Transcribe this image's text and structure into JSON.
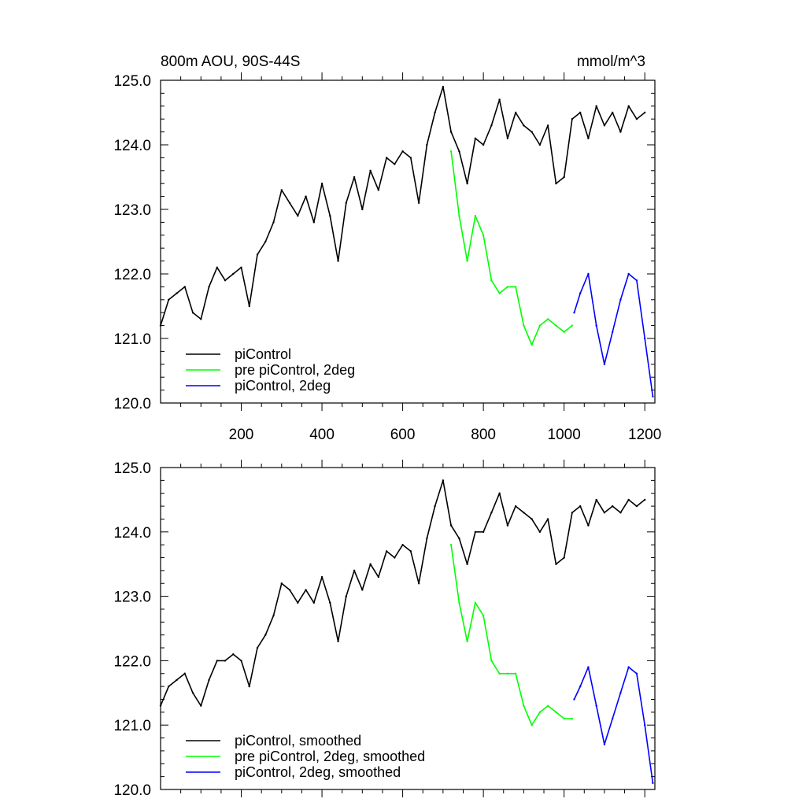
{
  "figure": {
    "title_left": "800m AOU, 90S-44S",
    "title_right": "mmol/m^3"
  },
  "colors": {
    "piControl": "#000000",
    "pre_piControl_2deg": "#00ff00",
    "piControl_2deg": "#0000ff",
    "axes": "#000000"
  },
  "chart_data": [
    {
      "type": "line",
      "title": "800m AOU, 90S-44S",
      "units": "mmol/m^3",
      "xlim": [
        0,
        1225
      ],
      "ylim": [
        120.0,
        125.0
      ],
      "xticks": [
        200,
        400,
        600,
        800,
        1000,
        1200
      ],
      "xtick_labels": [
        "200",
        "400",
        "600",
        "800",
        "1000",
        "1200"
      ],
      "yticks": [
        120.0,
        121.0,
        122.0,
        123.0,
        124.0,
        125.0
      ],
      "ytick_labels": [
        "120.0",
        "121.0",
        "122.0",
        "123.0",
        "124.0",
        "125.0"
      ],
      "grid": false,
      "legend_position": "bottom-left",
      "series": [
        {
          "name": "piControl",
          "color": "#000000",
          "x": [
            0,
            20,
            40,
            60,
            80,
            100,
            120,
            140,
            160,
            180,
            200,
            220,
            240,
            260,
            280,
            300,
            320,
            340,
            360,
            380,
            400,
            420,
            440,
            460,
            480,
            500,
            520,
            540,
            560,
            580,
            600,
            620,
            640,
            660,
            680,
            700,
            720,
            740,
            760,
            780,
            800,
            820,
            840,
            860,
            880,
            900,
            920,
            940,
            960,
            980,
            1000,
            1020,
            1040,
            1060,
            1080,
            1100,
            1120,
            1140,
            1160,
            1180,
            1200
          ],
          "y": [
            121.2,
            121.6,
            121.7,
            121.8,
            121.4,
            121.3,
            121.8,
            122.1,
            121.9,
            122.0,
            122.1,
            121.5,
            122.3,
            122.5,
            122.8,
            123.3,
            123.1,
            122.9,
            123.2,
            122.8,
            123.4,
            122.9,
            122.2,
            123.1,
            123.5,
            123.0,
            123.6,
            123.3,
            123.8,
            123.7,
            123.9,
            123.8,
            123.1,
            124.0,
            124.5,
            124.9,
            124.2,
            123.9,
            123.4,
            124.1,
            124.0,
            124.3,
            124.7,
            124.1,
            124.5,
            124.3,
            124.2,
            124.0,
            124.3,
            123.4,
            123.5,
            124.4,
            124.5,
            124.1,
            124.6,
            124.3,
            124.5,
            124.2,
            124.6,
            124.4,
            124.5
          ]
        },
        {
          "name": "pre piControl, 2deg",
          "color": "#00ff00",
          "x": [
            720,
            740,
            760,
            780,
            800,
            820,
            840,
            860,
            880,
            900,
            920,
            940,
            960,
            980,
            1000,
            1020
          ],
          "y": [
            123.9,
            122.9,
            122.2,
            122.9,
            122.6,
            121.9,
            121.7,
            121.8,
            121.8,
            121.2,
            120.9,
            121.2,
            121.3,
            121.2,
            121.1,
            121.2
          ]
        },
        {
          "name": "piControl, 2deg",
          "color": "#0000ff",
          "x": [
            1025,
            1040,
            1060,
            1080,
            1100,
            1120,
            1140,
            1160,
            1180,
            1200,
            1220
          ],
          "y": [
            121.4,
            121.7,
            122.0,
            121.2,
            120.6,
            121.1,
            121.6,
            122.0,
            121.9,
            121.0,
            120.1
          ]
        }
      ]
    },
    {
      "type": "line",
      "xlim": [
        0,
        1225
      ],
      "ylim": [
        120.0,
        125.0
      ],
      "yticks": [
        120.0,
        121.0,
        122.0,
        123.0,
        124.0,
        125.0
      ],
      "ytick_labels": [
        "120.0",
        "121.0",
        "122.0",
        "123.0",
        "124.0",
        "125.0"
      ],
      "grid": false,
      "legend_position": "bottom-left",
      "series": [
        {
          "name": "piControl, smoothed",
          "color": "#000000",
          "x": [
            0,
            20,
            40,
            60,
            80,
            100,
            120,
            140,
            160,
            180,
            200,
            220,
            240,
            260,
            280,
            300,
            320,
            340,
            360,
            380,
            400,
            420,
            440,
            460,
            480,
            500,
            520,
            540,
            560,
            580,
            600,
            620,
            640,
            660,
            680,
            700,
            720,
            740,
            760,
            780,
            800,
            820,
            840,
            860,
            880,
            900,
            920,
            940,
            960,
            980,
            1000,
            1020,
            1040,
            1060,
            1080,
            1100,
            1120,
            1140,
            1160,
            1180,
            1200
          ],
          "y": [
            121.3,
            121.6,
            121.7,
            121.8,
            121.5,
            121.3,
            121.7,
            122.0,
            122.0,
            122.1,
            122.0,
            121.6,
            122.2,
            122.4,
            122.7,
            123.2,
            123.1,
            122.9,
            123.1,
            122.9,
            123.3,
            122.9,
            122.3,
            123.0,
            123.4,
            123.1,
            123.5,
            123.3,
            123.7,
            123.6,
            123.8,
            123.7,
            123.2,
            123.9,
            124.4,
            124.8,
            124.1,
            123.9,
            123.5,
            124.0,
            124.0,
            124.3,
            124.6,
            124.1,
            124.4,
            124.3,
            124.2,
            124.0,
            124.2,
            123.5,
            123.6,
            124.3,
            124.4,
            124.1,
            124.5,
            124.3,
            124.4,
            124.3,
            124.5,
            124.4,
            124.5
          ]
        },
        {
          "name": "pre piControl, 2deg, smoothed",
          "color": "#00ff00",
          "x": [
            720,
            740,
            760,
            780,
            800,
            820,
            840,
            860,
            880,
            900,
            920,
            940,
            960,
            980,
            1000,
            1020
          ],
          "y": [
            123.8,
            122.9,
            122.3,
            122.9,
            122.7,
            122.0,
            121.8,
            121.8,
            121.8,
            121.3,
            121.0,
            121.2,
            121.3,
            121.2,
            121.1,
            121.1
          ]
        },
        {
          "name": "piControl, 2deg, smoothed",
          "color": "#0000ff",
          "x": [
            1025,
            1040,
            1060,
            1080,
            1100,
            1120,
            1140,
            1160,
            1180,
            1200,
            1220
          ],
          "y": [
            121.4,
            121.6,
            121.9,
            121.3,
            120.7,
            121.1,
            121.5,
            121.9,
            121.8,
            121.0,
            120.1
          ]
        }
      ]
    }
  ]
}
